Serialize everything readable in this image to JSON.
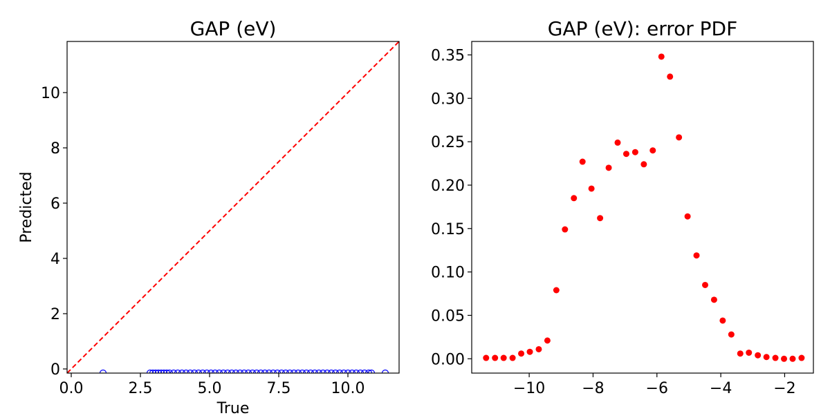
{
  "chart_data": [
    {
      "type": "scatter",
      "title": "GAP (eV)",
      "xlabel": "True",
      "ylabel": "Predicted",
      "xlim": [
        -0.15,
        11.85
      ],
      "ylim": [
        -0.15,
        11.85
      ],
      "xticks": [
        0.0,
        2.5,
        5.0,
        7.5,
        10.0
      ],
      "xtick_labels": [
        "0.0",
        "2.5",
        "5.0",
        "7.5",
        "10.0"
      ],
      "yticks": [
        0,
        2,
        4,
        6,
        8,
        10
      ],
      "ytick_labels": [
        "0",
        "2",
        "4",
        "6",
        "8",
        "10"
      ],
      "grid": false,
      "reference_line": {
        "style": "dashed",
        "color": "#ff0000",
        "from": [
          -0.15,
          -0.15
        ],
        "to": [
          11.85,
          11.85
        ]
      },
      "series": [
        {
          "marker": "open-circle",
          "color": "#0000ff",
          "x": [
            1.15,
            2.85,
            2.95,
            3.05,
            3.15,
            3.25,
            3.35,
            3.45,
            3.55,
            3.7,
            3.85,
            4.0,
            4.15,
            4.3,
            4.45,
            4.6,
            4.75,
            4.9,
            5.05,
            5.2,
            5.35,
            5.5,
            5.65,
            5.8,
            5.95,
            6.1,
            6.25,
            6.4,
            6.55,
            6.7,
            6.85,
            7.0,
            7.15,
            7.3,
            7.45,
            7.6,
            7.75,
            7.9,
            8.05,
            8.2,
            8.35,
            8.5,
            8.65,
            8.8,
            8.95,
            9.1,
            9.25,
            9.4,
            9.55,
            9.7,
            9.85,
            10.0,
            10.15,
            10.3,
            10.45,
            10.6,
            10.75,
            10.85,
            11.35
          ],
          "y": [
            -0.15,
            -0.15,
            -0.15,
            -0.15,
            -0.15,
            -0.15,
            -0.15,
            -0.15,
            -0.15,
            -0.15,
            -0.15,
            -0.15,
            -0.15,
            -0.15,
            -0.15,
            -0.15,
            -0.15,
            -0.15,
            -0.15,
            -0.15,
            -0.15,
            -0.15,
            -0.15,
            -0.15,
            -0.15,
            -0.15,
            -0.15,
            -0.15,
            -0.15,
            -0.15,
            -0.15,
            -0.15,
            -0.15,
            -0.15,
            -0.15,
            -0.15,
            -0.15,
            -0.15,
            -0.15,
            -0.15,
            -0.15,
            -0.15,
            -0.15,
            -0.15,
            -0.15,
            -0.15,
            -0.15,
            -0.15,
            -0.15,
            -0.15,
            -0.15,
            -0.15,
            -0.15,
            -0.15,
            -0.15,
            -0.15,
            -0.15,
            -0.15,
            -0.15
          ]
        }
      ]
    },
    {
      "type": "scatter",
      "title": "GAP (eV): error PDF",
      "xlabel": "",
      "ylabel": "",
      "xlim": [
        -11.8,
        -1.1
      ],
      "ylim": [
        -0.0165,
        0.3655
      ],
      "xticks": [
        -10,
        -8,
        -6,
        -4,
        -2
      ],
      "xtick_labels": [
        "−10",
        "−8",
        "−6",
        "−4",
        "−2"
      ],
      "yticks": [
        0.0,
        0.05,
        0.1,
        0.15,
        0.2,
        0.25,
        0.3,
        0.35
      ],
      "ytick_labels": [
        "0.00",
        "0.05",
        "0.10",
        "0.15",
        "0.20",
        "0.25",
        "0.30",
        "0.35"
      ],
      "grid": false,
      "series": [
        {
          "marker": "filled-circle",
          "color": "#ff0000",
          "x": [
            -11.35,
            -11.07,
            -10.8,
            -10.52,
            -10.25,
            -9.98,
            -9.7,
            -9.43,
            -9.15,
            -8.88,
            -8.6,
            -8.33,
            -8.05,
            -7.78,
            -7.51,
            -7.23,
            -6.96,
            -6.68,
            -6.41,
            -6.13,
            -5.86,
            -5.59,
            -5.31,
            -5.04,
            -4.76,
            -4.49,
            -4.21,
            -3.94,
            -3.67,
            -3.39,
            -3.12,
            -2.84,
            -2.57,
            -2.29,
            -2.02,
            -1.75,
            -1.47
          ],
          "y": [
            0.001,
            0.001,
            0.001,
            0.001,
            0.006,
            0.008,
            0.011,
            0.021,
            0.079,
            0.149,
            0.185,
            0.227,
            0.196,
            0.162,
            0.22,
            0.249,
            0.236,
            0.238,
            0.224,
            0.24,
            0.348,
            0.325,
            0.255,
            0.164,
            0.119,
            0.085,
            0.068,
            0.044,
            0.028,
            0.006,
            0.007,
            0.004,
            0.002,
            0.001,
            0.0,
            0.0,
            0.001
          ]
        }
      ]
    }
  ]
}
